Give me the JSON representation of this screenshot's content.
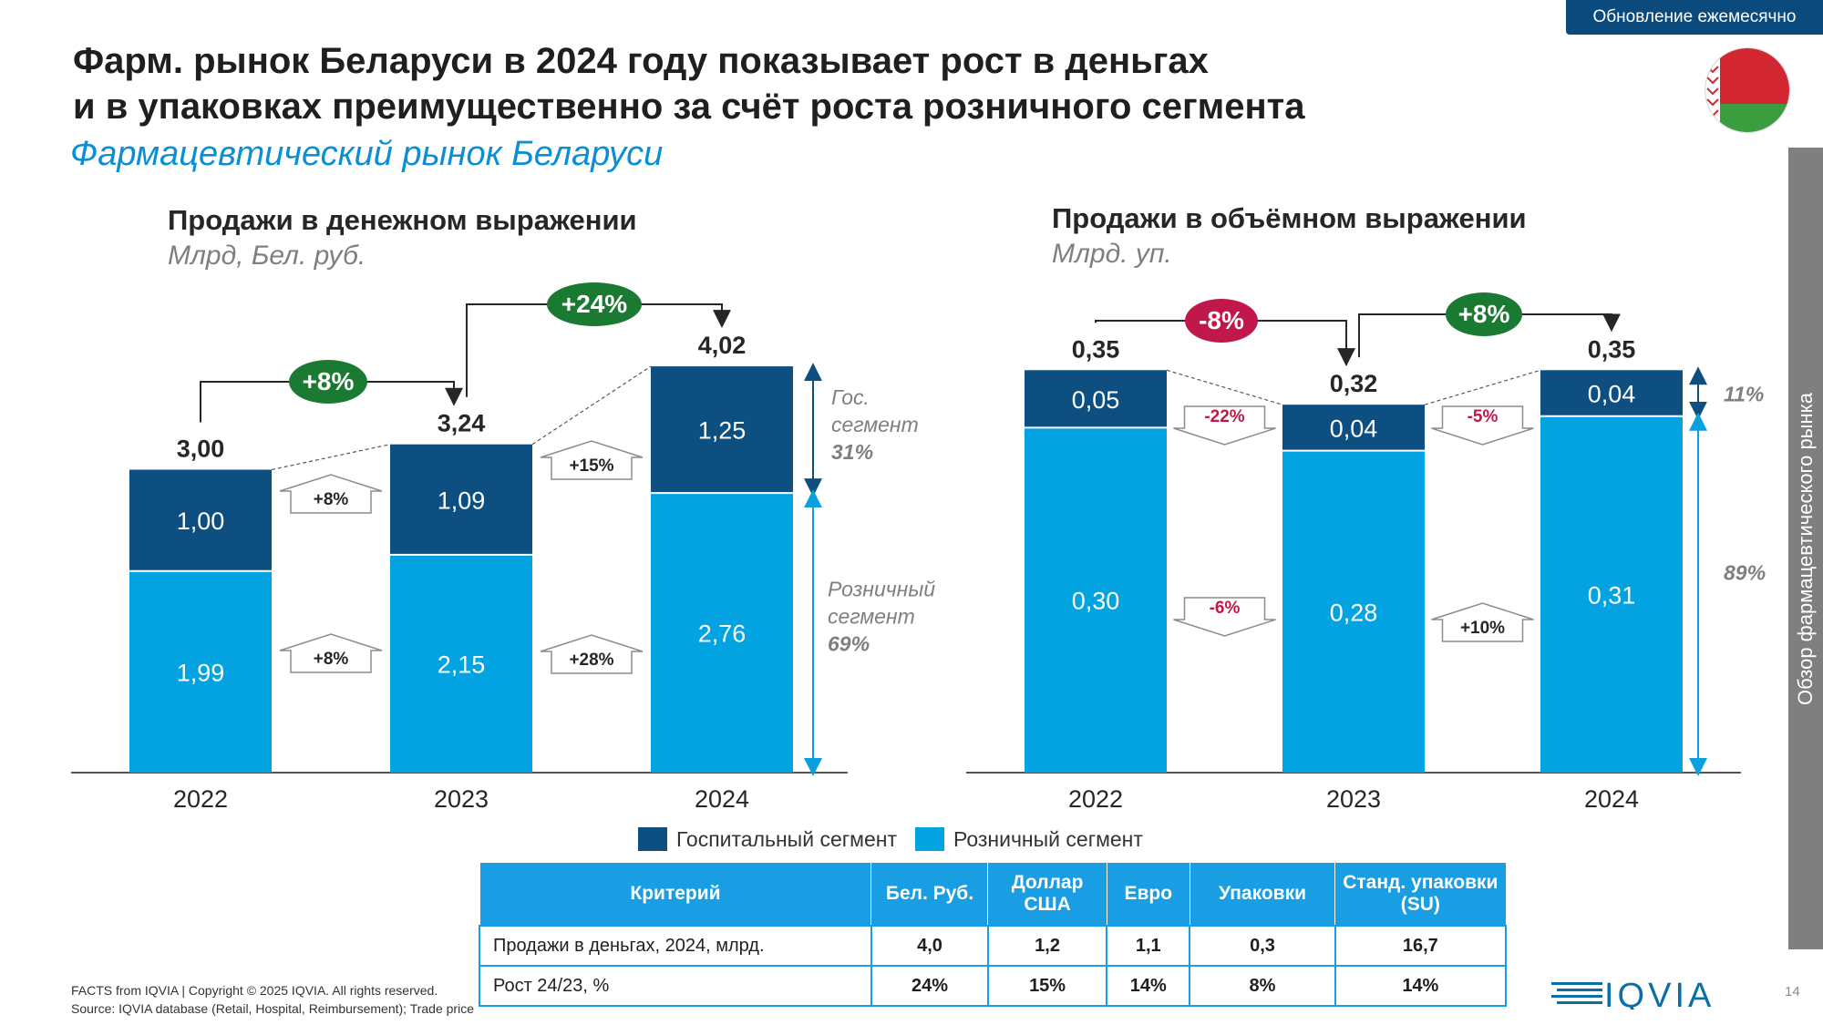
{
  "badge": "Обновление ежемесячно",
  "title_line1": "Фарм. рынок Беларуси в 2024 году показывает рост в деньгах",
  "title_line2": "и в упаковках преимущественно за счёт роста розничного сегмента",
  "subtitle": "Фармацевтический рынок Беларуси",
  "side_tab": "Обзор фармацевтического рынка",
  "colors": {
    "hospital": "#0c4f80",
    "retail": "#02a3e0",
    "green": "#1b7a32",
    "red": "#c0184a",
    "accent": "#0b4a7c"
  },
  "chart_data": [
    {
      "type": "bar",
      "stacked": true,
      "title": "Продажи в денежном выражении",
      "unit": "Млрд, Бел. руб.",
      "categories": [
        "2022",
        "2023",
        "2024"
      ],
      "series": [
        {
          "name": "Госпитальный сегмент",
          "values": [
            1.0,
            1.09,
            1.25
          ],
          "labels": [
            "1,00",
            "1,09",
            "1,25"
          ]
        },
        {
          "name": "Розничный сегмент",
          "values": [
            1.99,
            2.15,
            2.76
          ],
          "labels": [
            "1,99",
            "2,15",
            "2,76"
          ]
        }
      ],
      "totals": [
        3.0,
        3.24,
        4.02
      ],
      "total_labels": [
        "3,00",
        "3,24",
        "4,02"
      ],
      "ylim": [
        0,
        4.8
      ],
      "total_growth": [
        {
          "from": "2022",
          "to": "2023",
          "label": "+8%"
        },
        {
          "from": "2023",
          "to": "2024",
          "label": "+24%"
        }
      ],
      "segment_growth": {
        "hospital": [
          "+8%",
          "+15%"
        ],
        "retail": [
          "+8%",
          "+28%"
        ]
      },
      "share_hospital": {
        "name": "Гос.",
        "name2": "сегмент",
        "value": "31%"
      },
      "share_retail": {
        "name": "Розничный",
        "name2": "сегмент",
        "value": "69%"
      }
    },
    {
      "type": "bar",
      "stacked": true,
      "title": "Продажи в объёмном выражении",
      "unit": "Млрд. уп.",
      "categories": [
        "2022",
        "2023",
        "2024"
      ],
      "series": [
        {
          "name": "Госпитальный сегмент",
          "values": [
            0.05,
            0.04,
            0.04
          ],
          "labels": [
            "0,05",
            "0,04",
            "0,04"
          ]
        },
        {
          "name": "Розничный сегмент",
          "values": [
            0.3,
            0.28,
            0.31
          ],
          "labels": [
            "0,30",
            "0,28",
            "0,31"
          ]
        }
      ],
      "totals": [
        0.35,
        0.32,
        0.35
      ],
      "total_labels": [
        "0,35",
        "0,32",
        "0,35"
      ],
      "ylim": [
        0,
        0.4
      ],
      "total_growth": [
        {
          "from": "2022",
          "to": "2023",
          "label": "-8%"
        },
        {
          "from": "2023",
          "to": "2024",
          "label": "+8%"
        }
      ],
      "segment_growth": {
        "hospital": [
          "-22%",
          "-5%"
        ],
        "retail": [
          "-6%",
          "+10%"
        ]
      },
      "share_hospital": {
        "value": "11%"
      },
      "share_retail": {
        "value": "89%"
      }
    }
  ],
  "legend": [
    "Госпитальный сегмент",
    "Розничный сегмент"
  ],
  "table": {
    "headers": [
      "Критерий",
      "Бел. Руб.",
      "Доллар США",
      "Евро",
      "Упаковки",
      "Станд. упаковки (SU)"
    ],
    "rows": [
      [
        "Продажи в деньгах, 2024, млрд.",
        "4,0",
        "1,2",
        "1,1",
        "0,3",
        "16,7"
      ],
      [
        "Рост 24/23, %",
        "24%",
        "15%",
        "14%",
        "8%",
        "14%"
      ]
    ]
  },
  "footer_line1": "FACTS from IQVIA | Copyright © 2025 IQVIA. All rights reserved.",
  "footer_line2": "Source: IQVIA database (Retail, Hospital, Reimbursement); Trade price",
  "logo_text": "IQVIA",
  "page_number": "14"
}
